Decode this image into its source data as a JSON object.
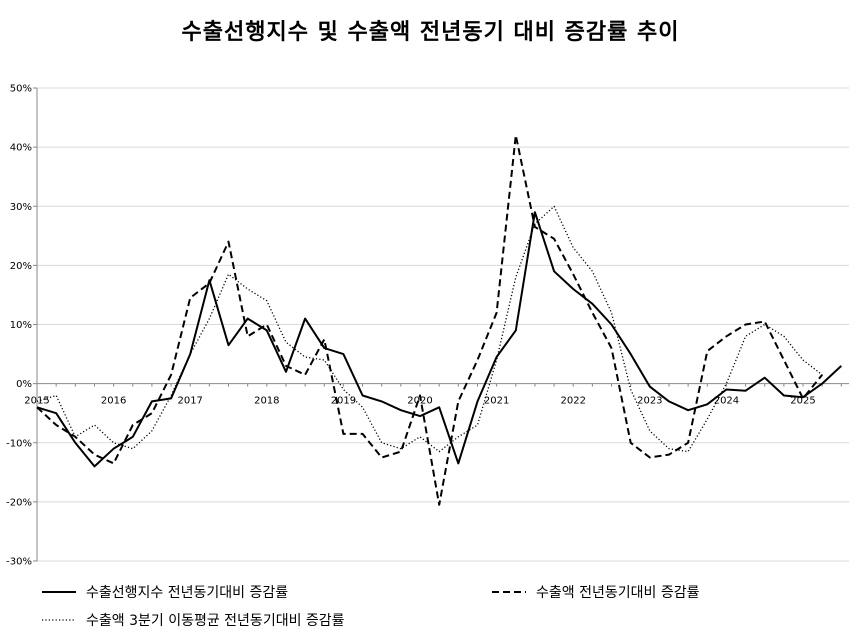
{
  "chart_data": {
    "type": "line",
    "title": "수출선행지수 및 수출액 전년동기 대비 증감률 추이",
    "xlabel": "",
    "ylabel": "",
    "ylim": [
      -30,
      50
    ],
    "yticks": [
      -30,
      -20,
      -10,
      0,
      10,
      20,
      30,
      40,
      50
    ],
    "ytick_labels": [
      "-30%",
      "-20%",
      "-10%",
      "0%",
      "10%",
      "20%",
      "30%",
      "40%",
      "50%"
    ],
    "xlim": [
      2015,
      2025.6
    ],
    "year_labels": [
      "2015",
      "2016",
      "2017",
      "2018",
      "2019",
      "2020",
      "2021",
      "2022",
      "2023",
      "2024",
      "2025"
    ],
    "grid": "horizontal",
    "legend_position": "bottom",
    "series": [
      {
        "name": "수출선행지수 전년동기대비 증감률",
        "style": "solid",
        "color": "#000000",
        "x": [
          2015.0,
          2015.25,
          2015.5,
          2015.75,
          2016.0,
          2016.25,
          2016.5,
          2016.75,
          2017.0,
          2017.25,
          2017.5,
          2017.75,
          2018.0,
          2018.25,
          2018.5,
          2018.75,
          2019.0,
          2019.25,
          2019.5,
          2019.75,
          2020.0,
          2020.25,
          2020.5,
          2020.75,
          2021.0,
          2021.25,
          2021.5,
          2021.75,
          2022.0,
          2022.25,
          2022.5,
          2022.75,
          2023.0,
          2023.25,
          2023.5,
          2023.75,
          2024.0,
          2024.25,
          2024.5,
          2024.75,
          2025.0,
          2025.25,
          2025.5
        ],
        "y": [
          -4,
          -5,
          -10,
          -14,
          -11,
          -9,
          -3,
          -2.5,
          5,
          17.5,
          6.5,
          11,
          9,
          2,
          11,
          6,
          5,
          -2,
          -3,
          -4.5,
          -5.5,
          -4,
          -13.5,
          -3,
          4.5,
          9,
          29,
          19,
          16,
          13.5,
          10,
          5,
          -0.5,
          -3,
          -4.5,
          -3.5,
          -1,
          -1.2,
          1,
          -2,
          -2.3,
          0,
          3
        ]
      },
      {
        "name": "수출액 전년동기대비 증감률",
        "style": "dashed",
        "color": "#000000",
        "x": [
          2015.0,
          2015.25,
          2015.5,
          2015.75,
          2016.0,
          2016.25,
          2016.5,
          2016.75,
          2017.0,
          2017.25,
          2017.5,
          2017.75,
          2018.0,
          2018.25,
          2018.5,
          2018.75,
          2019.0,
          2019.25,
          2019.5,
          2019.75,
          2020.0,
          2020.25,
          2020.5,
          2020.75,
          2021.0,
          2021.25,
          2021.5,
          2021.75,
          2022.0,
          2022.25,
          2022.5,
          2022.75,
          2023.0,
          2023.25,
          2023.5,
          2023.75,
          2024.0,
          2024.25,
          2024.5,
          2024.75,
          2025.0,
          2025.25
        ],
        "y": [
          -4,
          -7,
          -9,
          -12,
          -13.5,
          -7,
          -5,
          1.5,
          14.5,
          17,
          24,
          8,
          10,
          3,
          1.5,
          7.5,
          -8.5,
          -8.5,
          -12.5,
          -11.5,
          -2,
          -20.5,
          -3,
          4,
          12,
          42,
          26.5,
          24.5,
          18.5,
          12,
          6,
          -10,
          -12.5,
          -12,
          -10,
          5.5,
          8,
          10,
          10.5,
          4,
          -2.5,
          1.5
        ]
      },
      {
        "name": "수출액 3분기 이동평균 전년동기대비 증감률",
        "style": "dotted",
        "color": "#000000",
        "x": [
          2015.0,
          2015.25,
          2015.5,
          2015.75,
          2016.0,
          2016.25,
          2016.5,
          2016.75,
          2017.0,
          2017.25,
          2017.5,
          2017.75,
          2018.0,
          2018.25,
          2018.5,
          2018.75,
          2019.0,
          2019.25,
          2019.5,
          2019.75,
          2020.0,
          2020.25,
          2020.5,
          2020.75,
          2021.0,
          2021.25,
          2021.5,
          2021.75,
          2022.0,
          2022.25,
          2022.5,
          2022.75,
          2023.0,
          2023.25,
          2023.5,
          2023.75,
          2024.0,
          2024.25,
          2024.5,
          2024.75,
          2025.0,
          2025.25
        ],
        "y": [
          -3,
          -2,
          -9,
          -7,
          -10,
          -11,
          -8,
          -2,
          5,
          11,
          18.5,
          16,
          14,
          7,
          4.5,
          4,
          -1,
          -4,
          -10,
          -11,
          -9,
          -11.5,
          -9,
          -7,
          4,
          18,
          27,
          30,
          23,
          19,
          12,
          -1,
          -8,
          -11,
          -11.5,
          -6,
          0,
          8,
          10,
          8,
          4,
          1.5
        ]
      }
    ]
  }
}
